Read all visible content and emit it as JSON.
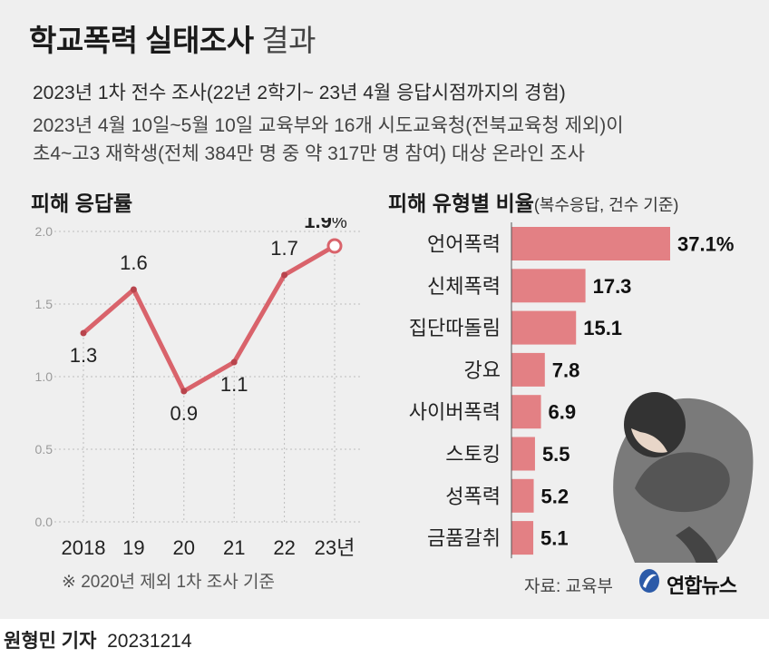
{
  "header": {
    "title_bold": "학교폭력 실태조사",
    "title_light": "결과",
    "subtitle": "2023년 1차 전수 조사(22년 2학기~ 23년 4월 응답시점까지의 경험)",
    "desc_line1": "2023년 4월 10일~5월 10일 교육부와 16개 시도교육청(전북교육청 제외)이",
    "desc_line2": "초4~고3 재학생(전체 384만 명 중 약 317만 명 참여) 대상 온라인 조사"
  },
  "left_section": {
    "title": "피해 응답률"
  },
  "right_section": {
    "title": "피해 유형별 비율",
    "note": "(복수응답, 건수 기준)"
  },
  "footnote": "※ 2020년 제외 1차 조사 기준",
  "source": "자료: 교육부",
  "logo_text": "연합뉴스",
  "byline": {
    "name": "원형민 기자",
    "date": "20231214"
  },
  "colors": {
    "series": "#d9636b",
    "bar": "#e38084",
    "background": "#efefef"
  },
  "chart_data": [
    {
      "type": "line",
      "title": "피해 응답률",
      "categories": [
        "2018",
        "19",
        "20",
        "21",
        "22",
        "23년"
      ],
      "values": [
        1.3,
        1.6,
        0.9,
        1.1,
        1.7,
        1.9
      ],
      "value_labels": [
        "1.3",
        "1.6",
        "0.9",
        "1.1",
        "1.7",
        "1.9"
      ],
      "last_value_unit": "%",
      "yticks": [
        "0.0",
        "0.5",
        "1.0",
        "1.5",
        "2.0"
      ],
      "ylim": [
        0,
        2.0
      ],
      "grid": true
    },
    {
      "type": "bar",
      "orientation": "horizontal",
      "title": "피해 유형별 비율",
      "categories": [
        "언어폭력",
        "신체폭력",
        "집단따돌림",
        "강요",
        "사이버폭력",
        "스토킹",
        "성폭력",
        "금품갈취"
      ],
      "values": [
        37.1,
        17.3,
        15.1,
        7.8,
        6.9,
        5.5,
        5.2,
        5.1
      ],
      "value_labels": [
        "37.1",
        "17.3",
        "15.1",
        "7.8",
        "6.9",
        "5.5",
        "5.2",
        "5.1"
      ],
      "first_value_unit": "%",
      "xlim": [
        0,
        40
      ]
    }
  ]
}
